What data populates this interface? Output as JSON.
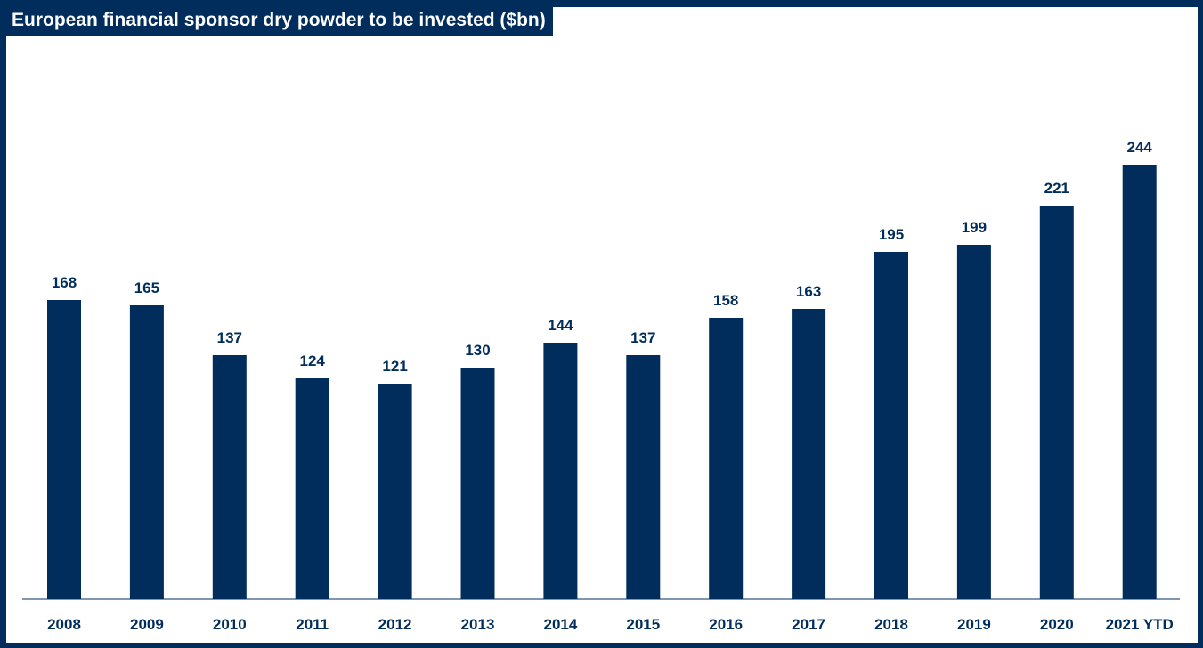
{
  "chart_data": {
    "type": "bar",
    "title": "European financial sponsor dry powder to be invested ($bn)",
    "categories": [
      "2008",
      "2009",
      "2010",
      "2011",
      "2012",
      "2013",
      "2014",
      "2015",
      "2016",
      "2017",
      "2018",
      "2019",
      "2020",
      "2021 YTD"
    ],
    "values": [
      168,
      165,
      137,
      124,
      121,
      130,
      144,
      137,
      158,
      163,
      195,
      199,
      221,
      244
    ],
    "xlabel": "",
    "ylabel": "",
    "ylim": [
      0,
      250
    ],
    "grid": false,
    "legend": "none",
    "bar_color": "#002D5C",
    "frame_color": "#002D5C"
  }
}
